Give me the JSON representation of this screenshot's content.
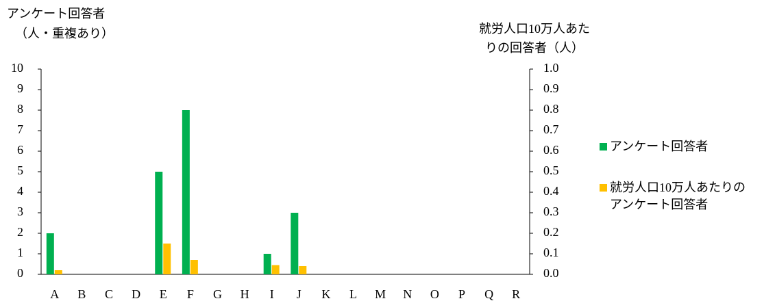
{
  "chart_data": {
    "type": "bar",
    "y_label": [
      "アンケート回答者",
      "（人・重複あり）"
    ],
    "y2_label": [
      "就労人口10万人あた",
      "りの回答者（人）"
    ],
    "categories": [
      "A",
      "B",
      "C",
      "D",
      "E",
      "F",
      "G",
      "H",
      "I",
      "J",
      "K",
      "L",
      "M",
      "N",
      "O",
      "P",
      "Q",
      "R"
    ],
    "series": [
      {
        "name": "アンケート回答者",
        "color": "#00b050",
        "values": [
          2,
          0,
          0,
          0,
          5,
          8,
          0,
          0,
          1,
          3,
          0,
          0,
          0,
          0,
          0,
          0,
          0,
          0
        ]
      },
      {
        "name": "就労人口10万人あたりのアンケート回答者",
        "color": "#ffc000",
        "axis": "y2",
        "values": [
          0.02,
          0,
          0,
          0,
          0.15,
          0.07,
          0,
          0,
          0.045,
          0.04,
          0,
          0,
          0,
          0,
          0,
          0,
          0,
          0
        ]
      }
    ],
    "ylim": [
      0,
      10
    ],
    "yticks": [
      0,
      1,
      2,
      3,
      4,
      5,
      6,
      7,
      8,
      9,
      10
    ],
    "y2lim": [
      0,
      1
    ],
    "y2ticks": [
      {
        "value": 0,
        "label": "0.0"
      },
      0.1,
      0.2,
      0.3,
      0.4,
      0.5,
      0.6,
      0.7,
      0.8,
      0.9,
      {
        "value": 1,
        "label": "1.0"
      }
    ],
    "legend": "right"
  }
}
